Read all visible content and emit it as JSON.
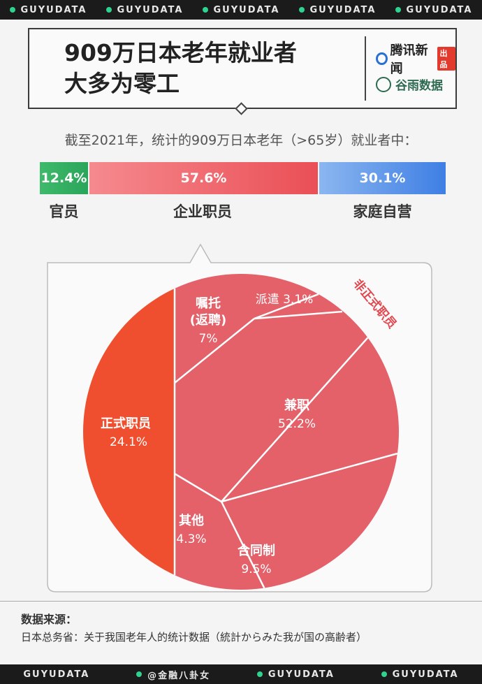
{
  "banner": [
    "GUYUDATA",
    "GUYUDATA",
    "GUYUDATA",
    "GUYUDATA",
    "GUYUDATA"
  ],
  "header": {
    "title_line1": "909万日本老年就业者",
    "title_line2": "大多为零工",
    "brand1": "腾讯新闻",
    "brand1_tag": "出品",
    "brand2": "谷雨数据"
  },
  "subtitle": "截至2021年，统计的909万日本老年（>65岁）就业者中：",
  "colors": {
    "green": "#2aa55a",
    "red_bar": "#ec5a5f",
    "blue_bar": "#4a86e6",
    "regular": "#ef4f2e",
    "irregular": "#e4616a"
  },
  "chart_data": [
    {
      "type": "bar",
      "categories": [
        "官员",
        "企业职员",
        "家庭自营"
      ],
      "values": [
        12.4,
        57.6,
        30.1
      ],
      "labels": [
        "12.4%",
        "57.6%",
        "30.1%"
      ]
    },
    {
      "type": "pie",
      "group_label": "非正式职员",
      "slices": [
        {
          "name": "正式职员",
          "value": 24.1,
          "label": "24.1%"
        },
        {
          "name": "嘱托",
          "sub": "(返聘)",
          "value": 7,
          "label": "7%"
        },
        {
          "name": "派遣",
          "value": 3.1,
          "label": "3.1%"
        },
        {
          "name": "兼职",
          "value": 52.2,
          "label": "52.2%"
        },
        {
          "name": "合同制",
          "value": 9.5,
          "label": "9.5%"
        },
        {
          "name": "其他",
          "value": 4.3,
          "label": "4.3%"
        }
      ]
    }
  ],
  "source": {
    "heading": "数据来源：",
    "text": "日本总务省：关于我国老年人的统计数据（統計からみた我が国の高齢者）"
  },
  "watermark": "@金融八卦女"
}
